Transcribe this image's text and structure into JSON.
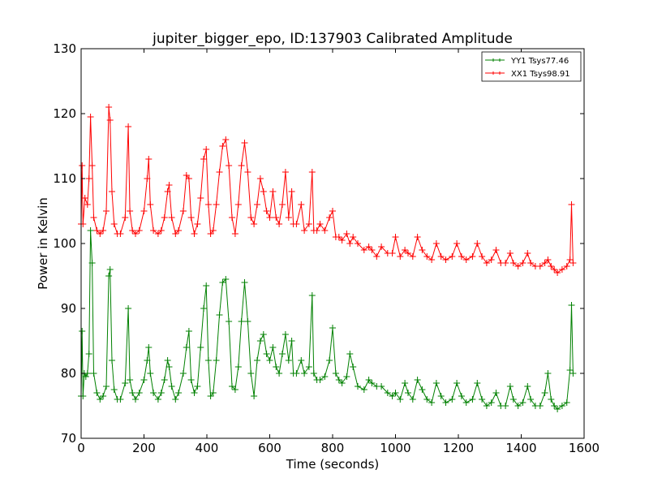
{
  "chart_data": {
    "type": "line",
    "title": "jupiter_bigger_epo, ID:137903 Calibrated Amplitude",
    "xlabel": "Time (seconds)",
    "ylabel": "Power in Kelvin",
    "xlim": [
      0,
      1600
    ],
    "ylim": [
      70,
      130
    ],
    "xticks": [
      "0",
      "200",
      "400",
      "600",
      "800",
      "1000",
      "1200",
      "1400",
      "1600"
    ],
    "yticks": [
      "70",
      "80",
      "90",
      "100",
      "110",
      "120",
      "130"
    ],
    "grid": false,
    "legend_position": "top-right",
    "marker": "+",
    "series": [
      {
        "name": "YY1 Tsys77.46",
        "color": "#008000",
        "points": [
          [
            0,
            76.5
          ],
          [
            3,
            86.5
          ],
          [
            6,
            76.5
          ],
          [
            10,
            80
          ],
          [
            15,
            79.5
          ],
          [
            20,
            80
          ],
          [
            25,
            83
          ],
          [
            30,
            102
          ],
          [
            35,
            97
          ],
          [
            40,
            80
          ],
          [
            50,
            77
          ],
          [
            60,
            76
          ],
          [
            70,
            76.5
          ],
          [
            80,
            78
          ],
          [
            88,
            95
          ],
          [
            92,
            96
          ],
          [
            98,
            82
          ],
          [
            105,
            77.5
          ],
          [
            115,
            76
          ],
          [
            125,
            76
          ],
          [
            140,
            78.5
          ],
          [
            150,
            90
          ],
          [
            155,
            79
          ],
          [
            163,
            77
          ],
          [
            173,
            76
          ],
          [
            185,
            77
          ],
          [
            200,
            79
          ],
          [
            210,
            82
          ],
          [
            215,
            84
          ],
          [
            220,
            80
          ],
          [
            230,
            77
          ],
          [
            245,
            76
          ],
          [
            255,
            77
          ],
          [
            265,
            79
          ],
          [
            275,
            82
          ],
          [
            280,
            81
          ],
          [
            288,
            78
          ],
          [
            300,
            76
          ],
          [
            310,
            77
          ],
          [
            325,
            80
          ],
          [
            335,
            84
          ],
          [
            343,
            86.5
          ],
          [
            350,
            79
          ],
          [
            360,
            77
          ],
          [
            370,
            78
          ],
          [
            380,
            84
          ],
          [
            390,
            90
          ],
          [
            398,
            93.5
          ],
          [
            405,
            82
          ],
          [
            412,
            76.5
          ],
          [
            420,
            77
          ],
          [
            430,
            82
          ],
          [
            440,
            89
          ],
          [
            450,
            94
          ],
          [
            460,
            94.5
          ],
          [
            470,
            88
          ],
          [
            480,
            78
          ],
          [
            490,
            77.5
          ],
          [
            500,
            81
          ],
          [
            510,
            88
          ],
          [
            520,
            94
          ],
          [
            530,
            88
          ],
          [
            540,
            80
          ],
          [
            550,
            76.5
          ],
          [
            560,
            82
          ],
          [
            570,
            85
          ],
          [
            580,
            86
          ],
          [
            590,
            83
          ],
          [
            600,
            82
          ],
          [
            610,
            84
          ],
          [
            620,
            81
          ],
          [
            630,
            80
          ],
          [
            640,
            83
          ],
          [
            650,
            86
          ],
          [
            660,
            82
          ],
          [
            670,
            85
          ],
          [
            675,
            80
          ],
          [
            685,
            80
          ],
          [
            700,
            82
          ],
          [
            710,
            80
          ],
          [
            725,
            81
          ],
          [
            735,
            92
          ],
          [
            740,
            80
          ],
          [
            750,
            79
          ],
          [
            760,
            79
          ],
          [
            775,
            79.5
          ],
          [
            790,
            82
          ],
          [
            800,
            87
          ],
          [
            810,
            80
          ],
          [
            820,
            79
          ],
          [
            830,
            78.5
          ],
          [
            845,
            79.5
          ],
          [
            855,
            83
          ],
          [
            865,
            81
          ],
          [
            880,
            78
          ],
          [
            900,
            77.5
          ],
          [
            915,
            79
          ],
          [
            925,
            78.5
          ],
          [
            940,
            78
          ],
          [
            955,
            78
          ],
          [
            975,
            77
          ],
          [
            990,
            76.5
          ],
          [
            1000,
            77
          ],
          [
            1015,
            76
          ],
          [
            1030,
            78.5
          ],
          [
            1040,
            77
          ],
          [
            1055,
            76
          ],
          [
            1070,
            79
          ],
          [
            1085,
            77.5
          ],
          [
            1100,
            76
          ],
          [
            1115,
            75.5
          ],
          [
            1130,
            78.5
          ],
          [
            1145,
            76.5
          ],
          [
            1160,
            75.5
          ],
          [
            1180,
            76
          ],
          [
            1195,
            78.5
          ],
          [
            1210,
            76.5
          ],
          [
            1225,
            75.5
          ],
          [
            1245,
            76
          ],
          [
            1260,
            78.5
          ],
          [
            1275,
            76
          ],
          [
            1290,
            75
          ],
          [
            1305,
            75.5
          ],
          [
            1320,
            77
          ],
          [
            1335,
            75
          ],
          [
            1350,
            75
          ],
          [
            1365,
            78
          ],
          [
            1375,
            76
          ],
          [
            1390,
            75
          ],
          [
            1405,
            75.5
          ],
          [
            1420,
            78
          ],
          [
            1430,
            76
          ],
          [
            1445,
            75
          ],
          [
            1460,
            75
          ],
          [
            1475,
            77
          ],
          [
            1485,
            80
          ],
          [
            1495,
            76
          ],
          [
            1505,
            75
          ],
          [
            1515,
            74.5
          ],
          [
            1530,
            75
          ],
          [
            1545,
            75.5
          ],
          [
            1555,
            80.5
          ],
          [
            1560,
            90.5
          ],
          [
            1565,
            80
          ]
        ]
      },
      {
        "name": "XX1 Tsys98.91",
        "color": "#ff0000",
        "points": [
          [
            0,
            103
          ],
          [
            3,
            112
          ],
          [
            6,
            103
          ],
          [
            12,
            107
          ],
          [
            20,
            106
          ],
          [
            25,
            110
          ],
          [
            30,
            119.5
          ],
          [
            35,
            112
          ],
          [
            40,
            104
          ],
          [
            50,
            102
          ],
          [
            60,
            101.5
          ],
          [
            70,
            102
          ],
          [
            80,
            105
          ],
          [
            88,
            121
          ],
          [
            92,
            119
          ],
          [
            98,
            108
          ],
          [
            105,
            103
          ],
          [
            115,
            101.5
          ],
          [
            125,
            101.5
          ],
          [
            140,
            104
          ],
          [
            150,
            118
          ],
          [
            155,
            105
          ],
          [
            163,
            102
          ],
          [
            173,
            101.5
          ],
          [
            185,
            102
          ],
          [
            200,
            105
          ],
          [
            210,
            110
          ],
          [
            215,
            113
          ],
          [
            220,
            106
          ],
          [
            230,
            102
          ],
          [
            245,
            101.5
          ],
          [
            255,
            102
          ],
          [
            265,
            104
          ],
          [
            275,
            108
          ],
          [
            280,
            109
          ],
          [
            288,
            104
          ],
          [
            300,
            101.5
          ],
          [
            310,
            102
          ],
          [
            325,
            105
          ],
          [
            335,
            110.5
          ],
          [
            343,
            110
          ],
          [
            350,
            104
          ],
          [
            360,
            101.5
          ],
          [
            370,
            103
          ],
          [
            380,
            107
          ],
          [
            390,
            113
          ],
          [
            398,
            114.5
          ],
          [
            405,
            106
          ],
          [
            412,
            101.5
          ],
          [
            420,
            102
          ],
          [
            430,
            106
          ],
          [
            440,
            111
          ],
          [
            450,
            115
          ],
          [
            460,
            116
          ],
          [
            470,
            112
          ],
          [
            480,
            104
          ],
          [
            490,
            101.5
          ],
          [
            500,
            106
          ],
          [
            510,
            112
          ],
          [
            520,
            115.5
          ],
          [
            530,
            111
          ],
          [
            540,
            104
          ],
          [
            550,
            103
          ],
          [
            560,
            106
          ],
          [
            570,
            110
          ],
          [
            580,
            108
          ],
          [
            590,
            105
          ],
          [
            600,
            104
          ],
          [
            610,
            108
          ],
          [
            620,
            104
          ],
          [
            630,
            103
          ],
          [
            640,
            106
          ],
          [
            650,
            111
          ],
          [
            660,
            104
          ],
          [
            670,
            108
          ],
          [
            675,
            103
          ],
          [
            685,
            103
          ],
          [
            700,
            106
          ],
          [
            710,
            102
          ],
          [
            725,
            103
          ],
          [
            735,
            111
          ],
          [
            740,
            102
          ],
          [
            750,
            102
          ],
          [
            760,
            103
          ],
          [
            775,
            102
          ],
          [
            790,
            104
          ],
          [
            800,
            105
          ],
          [
            810,
            101
          ],
          [
            820,
            101
          ],
          [
            830,
            100.5
          ],
          [
            845,
            101.5
          ],
          [
            855,
            100
          ],
          [
            865,
            101
          ],
          [
            880,
            100
          ],
          [
            900,
            99
          ],
          [
            915,
            99.5
          ],
          [
            925,
            99
          ],
          [
            940,
            98
          ],
          [
            955,
            99.5
          ],
          [
            975,
            98.5
          ],
          [
            990,
            98.5
          ],
          [
            1000,
            101
          ],
          [
            1015,
            98
          ],
          [
            1030,
            99
          ],
          [
            1040,
            98.5
          ],
          [
            1055,
            98
          ],
          [
            1070,
            101
          ],
          [
            1085,
            99
          ],
          [
            1100,
            98
          ],
          [
            1115,
            97.5
          ],
          [
            1130,
            100
          ],
          [
            1145,
            98
          ],
          [
            1160,
            97.5
          ],
          [
            1180,
            98
          ],
          [
            1195,
            100
          ],
          [
            1210,
            98
          ],
          [
            1225,
            97.5
          ],
          [
            1245,
            98
          ],
          [
            1260,
            100
          ],
          [
            1275,
            98
          ],
          [
            1290,
            97
          ],
          [
            1305,
            97.5
          ],
          [
            1320,
            99
          ],
          [
            1335,
            97
          ],
          [
            1350,
            97
          ],
          [
            1365,
            98.5
          ],
          [
            1375,
            97
          ],
          [
            1390,
            96.5
          ],
          [
            1405,
            97
          ],
          [
            1420,
            98.5
          ],
          [
            1430,
            97
          ],
          [
            1445,
            96.5
          ],
          [
            1460,
            96.5
          ],
          [
            1475,
            97
          ],
          [
            1485,
            97.5
          ],
          [
            1495,
            96.5
          ],
          [
            1505,
            96
          ],
          [
            1515,
            95.5
          ],
          [
            1530,
            96
          ],
          [
            1545,
            96.5
          ],
          [
            1555,
            97.5
          ],
          [
            1560,
            106
          ],
          [
            1565,
            97
          ]
        ]
      }
    ]
  }
}
